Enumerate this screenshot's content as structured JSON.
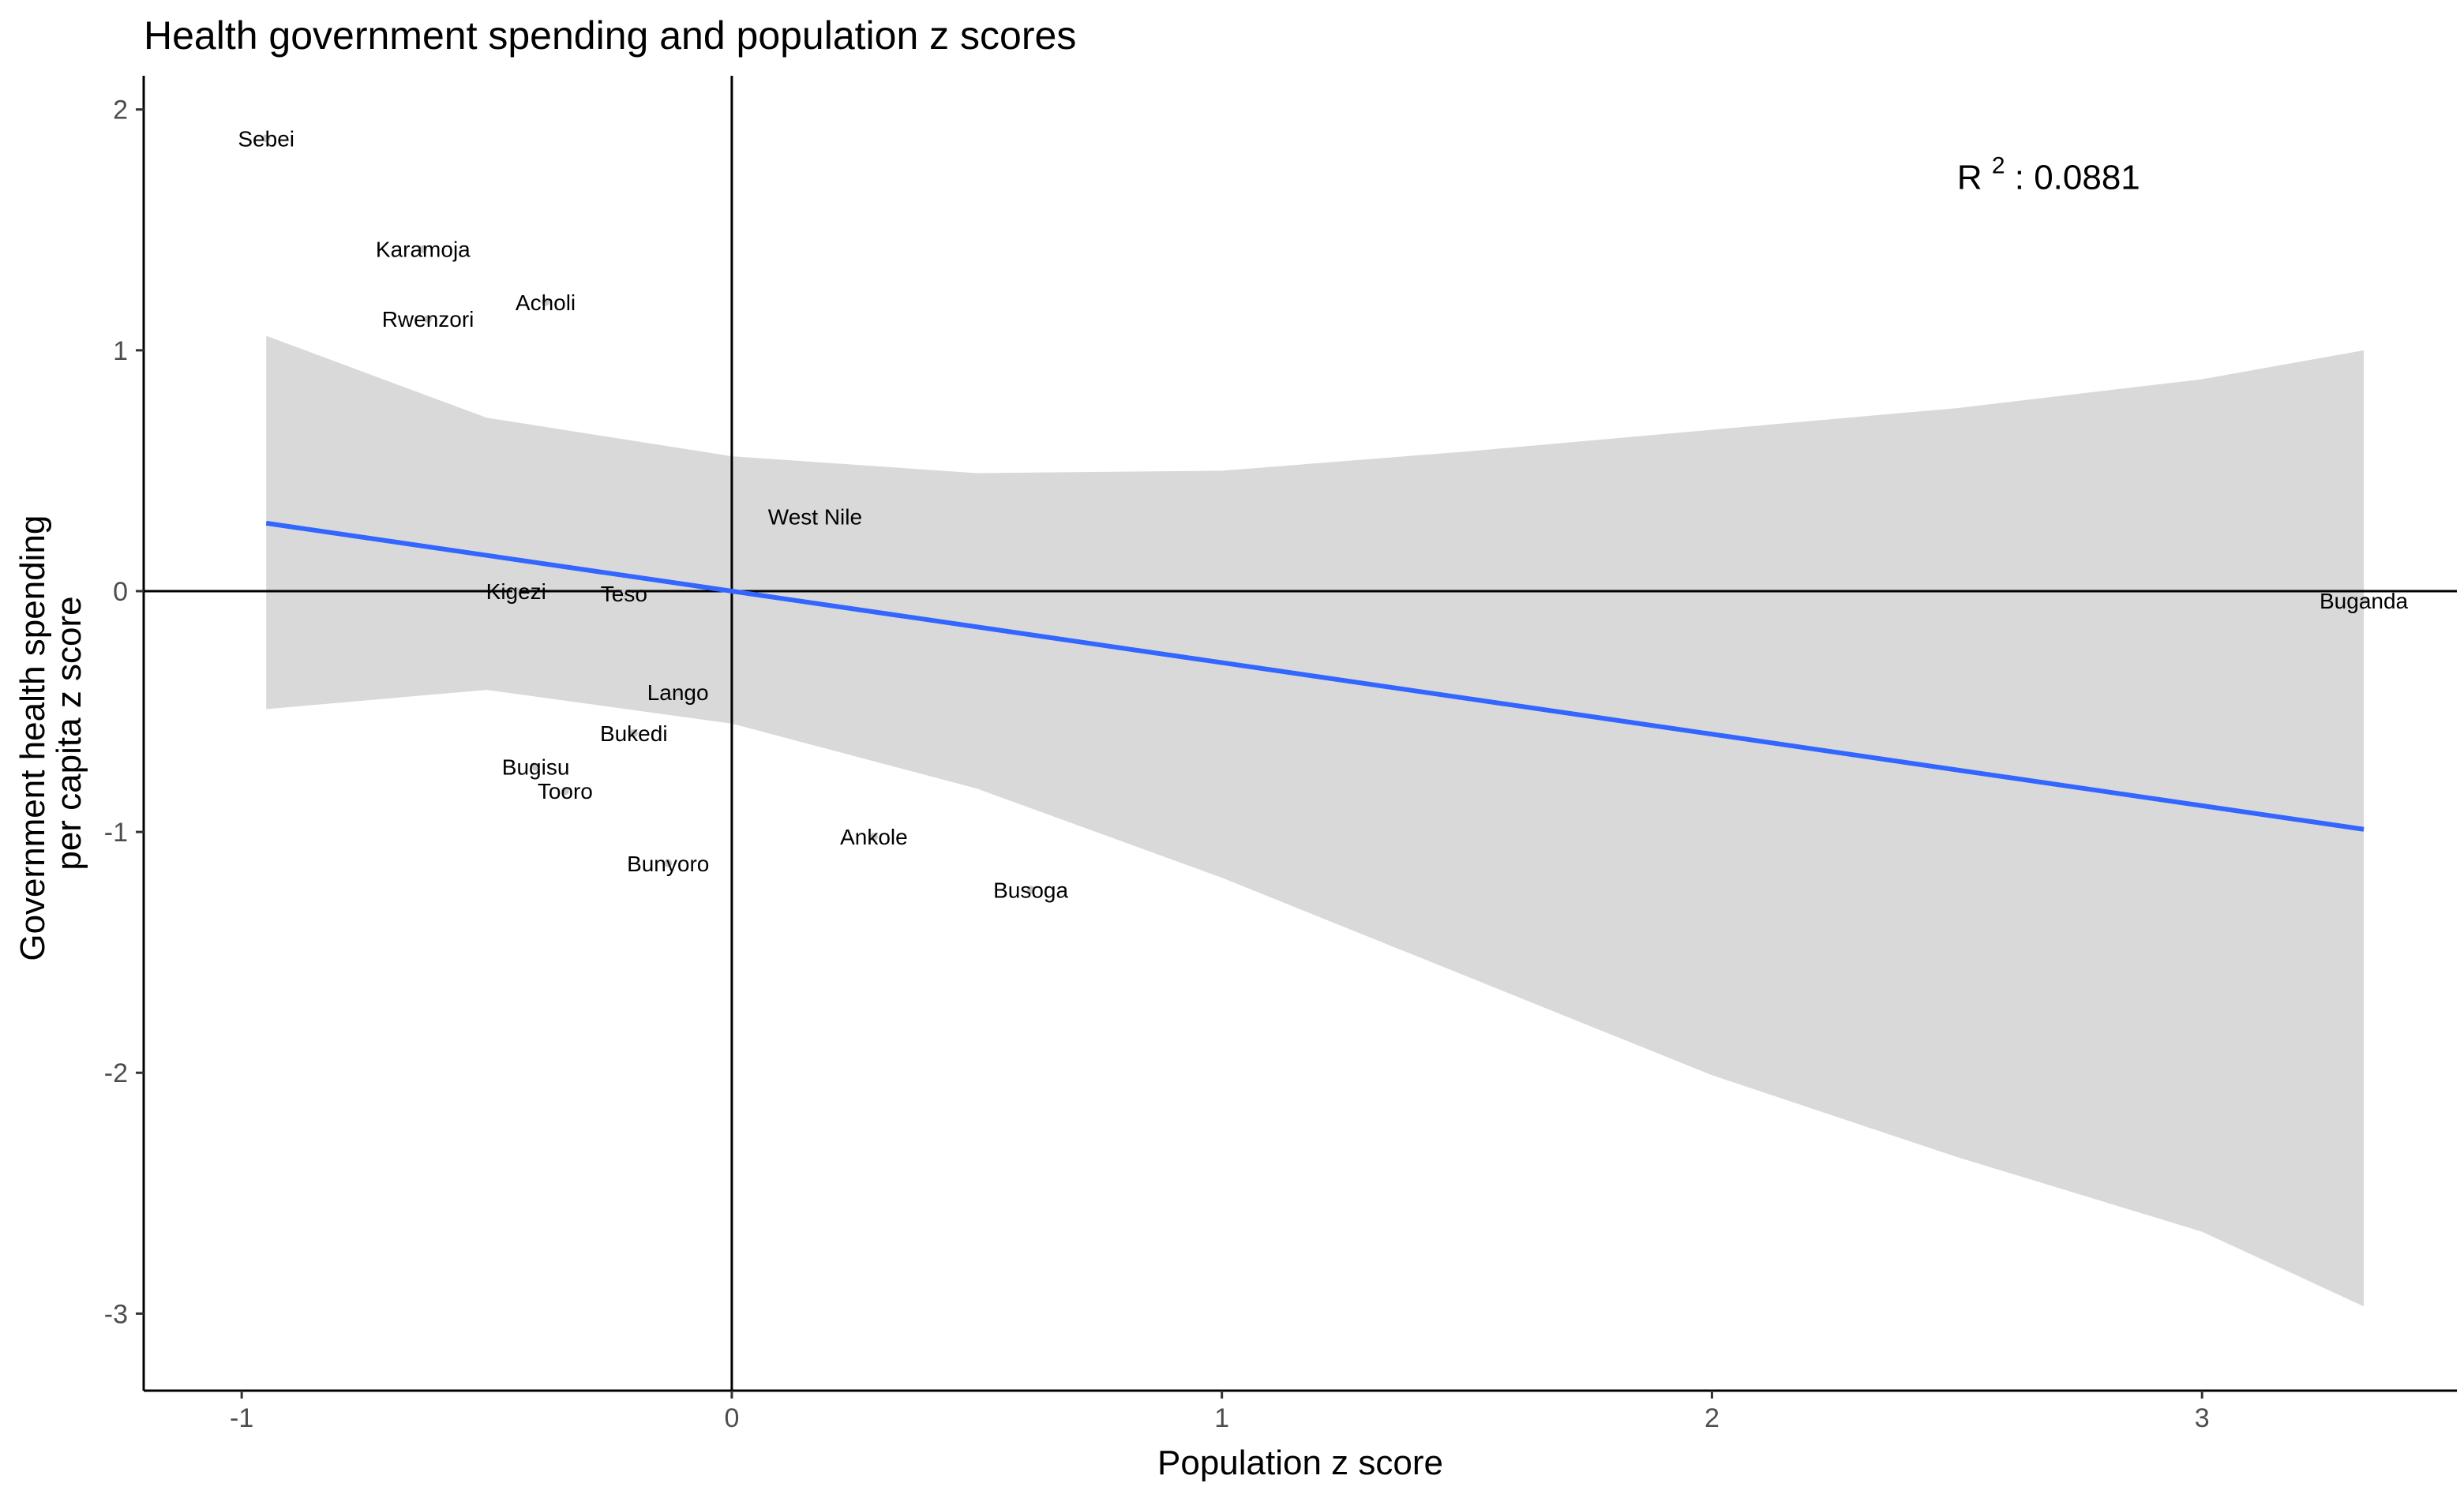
{
  "chart_data": {
    "type": "scatter",
    "title": "Health government spending and population z scores",
    "xlabel": "Population z score",
    "ylabel_lines": [
      "Government health spending",
      "per capita z score"
    ],
    "xlim": [
      -1.2,
      3.52
    ],
    "ylim": [
      -3.32,
      2.14
    ],
    "x_ticks": [
      -1,
      0,
      1,
      2,
      3
    ],
    "y_ticks": [
      -3,
      -2,
      -1,
      0,
      1,
      2
    ],
    "x_tick_labels": [
      "-1",
      "0",
      "1",
      "2",
      "3"
    ],
    "y_tick_labels": [
      "-3",
      "-2",
      "-1",
      "0",
      "1",
      "2"
    ],
    "grid": false,
    "reference_lines": {
      "x": 0,
      "y": 0
    },
    "points": [
      {
        "label": "Sebei",
        "x": -0.95,
        "y": 1.88
      },
      {
        "label": "Karamoja",
        "x": -0.63,
        "y": 1.42
      },
      {
        "label": "Acholi",
        "x": -0.38,
        "y": 1.2
      },
      {
        "label": "Rwenzori",
        "x": -0.62,
        "y": 1.13
      },
      {
        "label": "West Nile",
        "x": 0.17,
        "y": 0.31
      },
      {
        "label": "Kigezi",
        "x": -0.44,
        "y": 0.0
      },
      {
        "label": "Teso",
        "x": -0.22,
        "y": -0.01
      },
      {
        "label": "Lango",
        "x": -0.11,
        "y": -0.42
      },
      {
        "label": "Bukedi",
        "x": -0.2,
        "y": -0.59
      },
      {
        "label": "Bugisu",
        "x": -0.4,
        "y": -0.73
      },
      {
        "label": "Tooro",
        "x": -0.34,
        "y": -0.83
      },
      {
        "label": "Ankole",
        "x": 0.29,
        "y": -1.02
      },
      {
        "label": "Bunyoro",
        "x": -0.13,
        "y": -1.13
      },
      {
        "label": "Busoga",
        "x": 0.61,
        "y": -1.24
      },
      {
        "label": "Buganda",
        "x": 3.33,
        "y": -0.04
      }
    ],
    "regression": {
      "x_range": [
        -0.95,
        3.33
      ],
      "slope": -0.297,
      "intercept": 0.0,
      "color": "#3366FF",
      "ribbon_color": "#d9d9d9",
      "ribbon": [
        {
          "x": -0.95,
          "lower": -0.49,
          "upper": 1.06
        },
        {
          "x": -0.5,
          "lower": -0.41,
          "upper": 0.72
        },
        {
          "x": 0.0,
          "lower": -0.55,
          "upper": 0.56
        },
        {
          "x": 0.5,
          "lower": -0.82,
          "upper": 0.49
        },
        {
          "x": 1.0,
          "lower": -1.19,
          "upper": 0.5
        },
        {
          "x": 1.5,
          "lower": -1.6,
          "upper": 0.58
        },
        {
          "x": 2.0,
          "lower": -2.01,
          "upper": 0.67
        },
        {
          "x": 2.5,
          "lower": -2.35,
          "upper": 0.76
        },
        {
          "x": 3.0,
          "lower": -2.66,
          "upper": 0.88
        },
        {
          "x": 3.33,
          "lower": -2.97,
          "upper": 1.0
        }
      ]
    },
    "annotation": {
      "base": "R",
      "superscript": "2",
      "rest": ": 0.0881",
      "x": 2.5,
      "y": 1.67
    }
  }
}
